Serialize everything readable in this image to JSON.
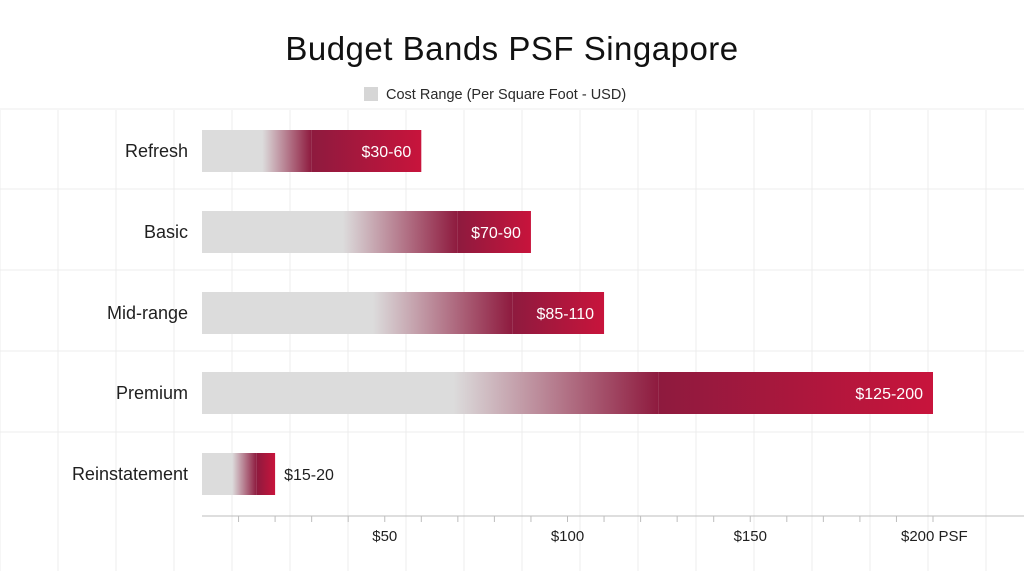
{
  "chart_data": {
    "type": "bar",
    "orientation": "horizontal",
    "stacked_range": true,
    "title": "Budget Bands PSF Singapore",
    "legend": {
      "label": "Cost Range (Per Square Foot - USD)",
      "swatch_color": "#d6d6d6",
      "placement": "top-center"
    },
    "categories": [
      "Refresh",
      "Basic",
      "Mid-range",
      "Premium",
      "Reinstatement"
    ],
    "series": [
      {
        "name": "Cost Range (Per Square Foot - USD)",
        "ranges": [
          [
            30,
            60
          ],
          [
            70,
            90
          ],
          [
            85,
            110
          ],
          [
            125,
            200
          ],
          [
            15,
            20
          ]
        ],
        "labels": [
          "$30-60",
          "$70-90",
          "$85-110",
          "$125-200",
          "$15-20"
        ]
      }
    ],
    "x_ticks": [
      {
        "value": 50,
        "label": "$50"
      },
      {
        "value": 100,
        "label": "$100"
      },
      {
        "value": 150,
        "label": "$150"
      },
      {
        "value": 200,
        "label": "$200 PSF"
      }
    ],
    "xlim": [
      0,
      200
    ],
    "grid": true,
    "colors": {
      "base": "#dcdcdc",
      "accent_dark": "#8e1a3e",
      "accent_bright": "#c8143c",
      "grid": "#ececec",
      "axis": "#bdbdbd"
    }
  }
}
